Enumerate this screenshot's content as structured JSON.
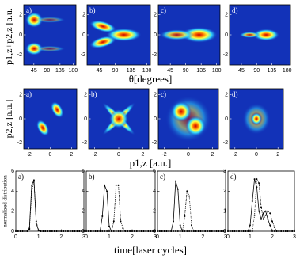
{
  "chart_data": [
    {
      "type": "heatmap",
      "label": "a)",
      "ylabel": "p1,z+p2,z [a.u.]",
      "xlim": [
        10,
        190
      ],
      "ylim": [
        -3,
        3
      ],
      "xticks": [
        45,
        90,
        135,
        180
      ],
      "yticks": [
        -2,
        0,
        2
      ]
    },
    {
      "type": "heatmap",
      "label": "b)",
      "xlabel": "θ[degrees]",
      "xlim": [
        10,
        190
      ],
      "ylim": [
        -3,
        3
      ],
      "xticks": [
        45,
        90,
        135,
        180
      ],
      "yticks": [
        -2,
        0,
        2
      ]
    },
    {
      "type": "heatmap",
      "label": "c)",
      "xlim": [
        10,
        190
      ],
      "ylim": [
        -3,
        3
      ],
      "xticks": [
        45,
        90,
        135,
        180
      ],
      "yticks": [
        -2,
        0,
        2
      ]
    },
    {
      "type": "heatmap",
      "label": "d)",
      "xlim": [
        10,
        190
      ],
      "ylim": [
        -3,
        3
      ],
      "xticks": [
        45,
        90,
        135,
        180
      ],
      "yticks": [
        -2,
        0,
        2
      ]
    },
    {
      "type": "heatmap",
      "label": "a)",
      "ylabel": "p2,z [a.u.]",
      "xlim": [
        -2.5,
        2.5
      ],
      "ylim": [
        -2.5,
        2.5
      ],
      "xticks": [
        -2,
        0,
        2
      ],
      "yticks": [
        -2,
        0,
        2
      ]
    },
    {
      "type": "heatmap",
      "label": "b)",
      "xlabel": "p1,z [a.u.]",
      "xlim": [
        -2.5,
        2.5
      ],
      "ylim": [
        -2.5,
        2.5
      ],
      "xticks": [
        -2,
        0,
        2
      ],
      "yticks": [
        -2,
        0,
        2
      ]
    },
    {
      "type": "heatmap",
      "label": "c)",
      "xlim": [
        -2.5,
        2.5
      ],
      "ylim": [
        -2.5,
        2.5
      ],
      "xticks": [
        -2,
        0,
        2
      ],
      "yticks": [
        -2,
        0,
        2
      ]
    },
    {
      "type": "heatmap",
      "label": "d)",
      "xlim": [
        -2.5,
        2.5
      ],
      "ylim": [
        -2.5,
        2.5
      ],
      "xticks": [
        -2,
        0,
        2
      ],
      "yticks": [
        -2,
        0,
        2
      ]
    },
    {
      "type": "line",
      "label": "a)",
      "ylabel": "normalized distribution",
      "xlim": [
        0,
        3
      ],
      "ylim": [
        0,
        6
      ],
      "xticks": [
        0,
        1,
        2,
        3
      ],
      "yticks": [
        0,
        2,
        4,
        6
      ],
      "x": [
        0,
        0.1,
        0.2,
        0.3,
        0.4,
        0.5,
        0.6,
        0.7,
        0.8,
        0.9,
        1,
        1.1,
        1.2,
        1.3,
        1.4,
        1.5,
        1.6,
        1.7,
        1.8,
        1.9,
        2,
        2.1,
        2.2,
        2.3,
        2.4,
        2.5,
        2.6,
        2.7,
        2.8,
        2.9,
        3
      ],
      "series": [
        {
          "color": "#000000",
          "style": "solid",
          "values": [
            0,
            0,
            0,
            0,
            0,
            0,
            0.3,
            4.6,
            5.1,
            0.8,
            0.1,
            0,
            0,
            0,
            0,
            0,
            0,
            0,
            0,
            0,
            0,
            0,
            0,
            0,
            0,
            0,
            0,
            0,
            0,
            0,
            0
          ]
        },
        {
          "color": "#000000",
          "style": "dotted",
          "values": [
            0,
            0,
            0,
            0,
            0,
            0,
            0.2,
            4.0,
            5.0,
            1.0,
            0.1,
            0,
            0,
            0,
            0,
            0,
            0,
            0,
            0,
            0,
            0,
            0,
            0,
            0,
            0,
            0,
            0,
            0,
            0,
            0,
            0
          ]
        }
      ]
    },
    {
      "type": "line",
      "label": "b)",
      "xlim": [
        0,
        3
      ],
      "ylim": [
        0,
        6
      ],
      "xticks": [
        0,
        1,
        2,
        3
      ],
      "yticks": [
        0,
        2,
        4,
        6
      ],
      "x": [
        0,
        0.1,
        0.2,
        0.3,
        0.4,
        0.5,
        0.6,
        0.7,
        0.8,
        0.9,
        1,
        1.1,
        1.2,
        1.3,
        1.4,
        1.5,
        1.6,
        1.7,
        1.8,
        1.9,
        2,
        2.1,
        2.2,
        2.3,
        2.4,
        2.5,
        2.6,
        2.7,
        2.8,
        2.9,
        3
      ],
      "series": [
        {
          "color": "#000000",
          "style": "solid",
          "values": [
            0,
            0,
            0,
            0,
            0,
            0,
            0,
            1.5,
            4.6,
            4.0,
            0.5,
            0,
            0,
            0,
            0,
            0,
            0,
            0,
            0,
            0,
            0,
            0,
            0,
            0,
            0,
            0,
            0,
            0,
            0,
            0,
            0
          ]
        },
        {
          "color": "#000000",
          "style": "dotted",
          "values": [
            0,
            0,
            0,
            0,
            0,
            0,
            0,
            0,
            0,
            0,
            0,
            0,
            1.0,
            4.6,
            4.6,
            1.0,
            0.3,
            0,
            0,
            0,
            0,
            0,
            0,
            0,
            0,
            0,
            0,
            0,
            0,
            0,
            0
          ]
        }
      ]
    },
    {
      "type": "line",
      "label": "c)",
      "xlim": [
        0,
        3
      ],
      "ylim": [
        0,
        6
      ],
      "xticks": [
        0,
        1,
        2,
        3
      ],
      "yticks": [
        0,
        2,
        4,
        6
      ],
      "x": [
        0,
        0.1,
        0.2,
        0.3,
        0.4,
        0.5,
        0.6,
        0.7,
        0.8,
        0.9,
        1,
        1.1,
        1.2,
        1.3,
        1.4,
        1.5,
        1.6,
        1.7,
        1.8,
        1.9,
        2,
        2.1,
        2.2,
        2.3,
        2.4,
        2.5,
        2.6,
        2.7,
        2.8,
        2.9,
        3
      ],
      "series": [
        {
          "color": "#000000",
          "style": "solid",
          "values": [
            0,
            0,
            0,
            0,
            0,
            0,
            0,
            1.0,
            5.0,
            4.2,
            0.6,
            0,
            0,
            0,
            0,
            0,
            0,
            0,
            0,
            0,
            0,
            0,
            0,
            0,
            0,
            0,
            0,
            0,
            0,
            0,
            0
          ]
        },
        {
          "color": "#000000",
          "style": "dotted",
          "values": [
            0,
            0,
            0,
            0,
            0,
            0,
            0,
            0,
            0,
            0,
            0,
            0,
            1.5,
            4.0,
            3.5,
            0.6,
            0,
            0,
            0,
            0,
            0,
            0,
            0,
            0,
            0,
            0,
            0,
            0,
            0,
            0,
            0
          ]
        }
      ]
    },
    {
      "type": "line",
      "label": "d)",
      "xlim": [
        0,
        3
      ],
      "ylim": [
        0,
        3
      ],
      "xticks": [
        0,
        1,
        2,
        3
      ],
      "yticks": [
        0,
        1,
        2,
        3
      ],
      "xlabel": "time[laser cycles]",
      "x": [
        0,
        0.1,
        0.2,
        0.3,
        0.4,
        0.5,
        0.6,
        0.7,
        0.8,
        0.9,
        1,
        1.1,
        1.2,
        1.3,
        1.4,
        1.5,
        1.6,
        1.7,
        1.8,
        1.9,
        2,
        2.1,
        2.2,
        2.3,
        2.4,
        2.5,
        2.6,
        2.7,
        2.8,
        2.9,
        3
      ],
      "series": [
        {
          "color": "#000000",
          "style": "solid",
          "values": [
            0,
            0,
            0,
            0,
            0,
            0,
            0,
            0,
            0,
            0,
            0.3,
            1.5,
            2.6,
            2.2,
            1.0,
            0.6,
            0.9,
            1.0,
            0.6,
            0.3,
            0,
            0,
            0,
            0,
            0,
            0,
            0,
            0,
            0,
            0,
            0
          ]
        },
        {
          "color": "#000000",
          "style": "dotted",
          "values": [
            0,
            0,
            0,
            0,
            0,
            0,
            0,
            0,
            0,
            0,
            0,
            0,
            0.8,
            2.6,
            2.4,
            1.2,
            0.6,
            0.8,
            1.0,
            0.9,
            0.5,
            0.2,
            0,
            0,
            0,
            0,
            0,
            0,
            0,
            0,
            0
          ]
        }
      ]
    }
  ]
}
